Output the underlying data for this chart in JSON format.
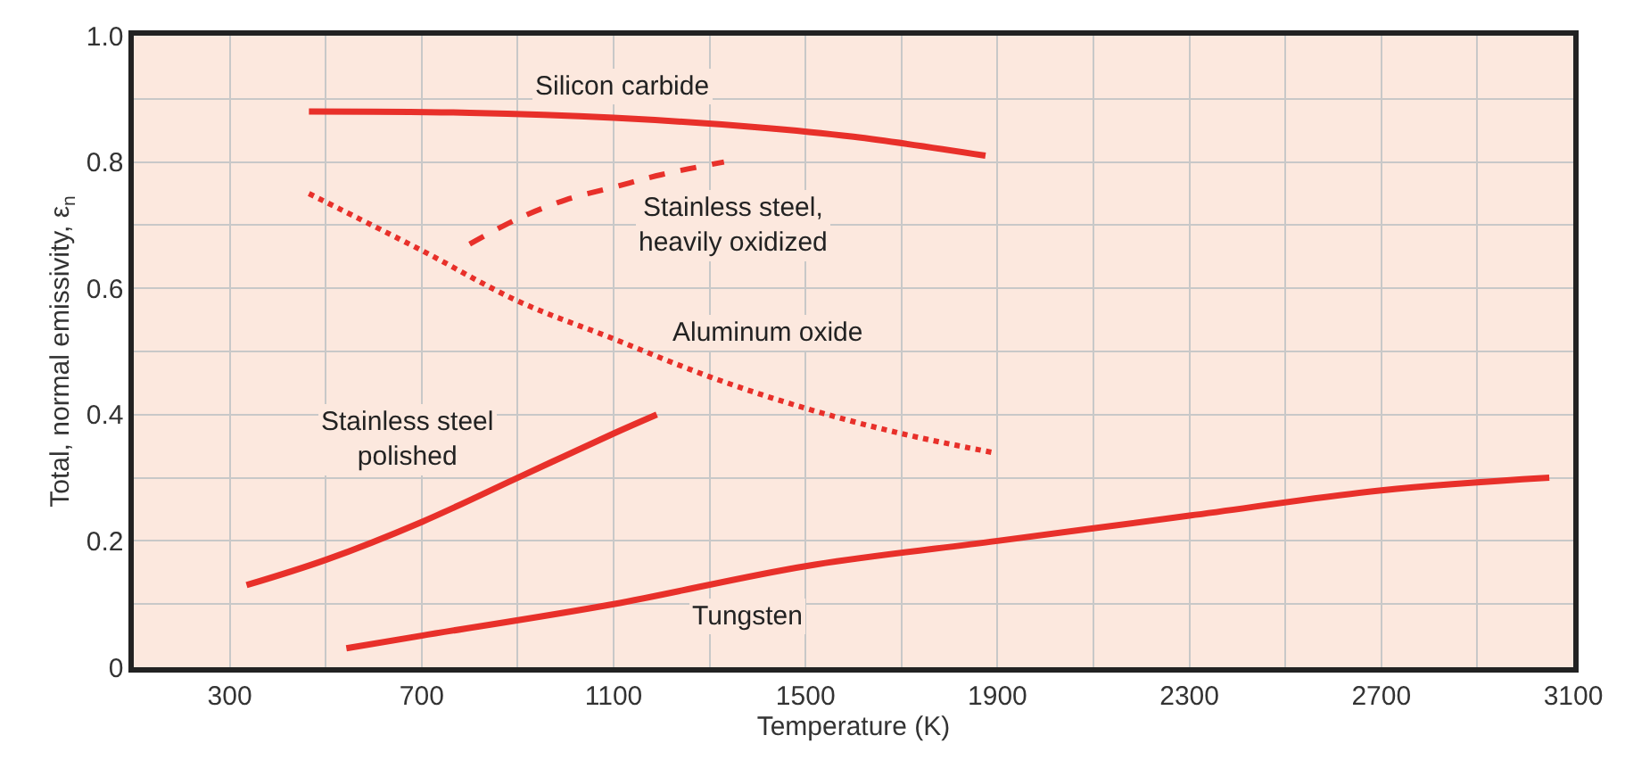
{
  "chart_data": {
    "type": "line",
    "xlabel": "Temperature (K)",
    "ylabel": "Total, normal emissivity, ε$_{n}$",
    "xlim": [
      100,
      3100
    ],
    "xticks": [
      300,
      700,
      1100,
      1500,
      1900,
      2300,
      2700,
      3100
    ],
    "ylim": [
      0,
      1
    ],
    "yticks": [
      0,
      {
        "value": 0.2,
        "label": "0.2"
      },
      {
        "value": 0.4,
        "label": "0.4"
      },
      {
        "value": 0.6,
        "label": "0.6"
      },
      {
        "value": 0.8,
        "label": "0.8"
      },
      {
        "value": 1,
        "label": "1.0"
      }
    ],
    "grid": true,
    "legend": false,
    "marker": "none",
    "series": [
      {
        "name": "Silicon carbide",
        "color": "#e8302a",
        "line_style": "solid",
        "x": [
          465,
          800,
          1100,
          1400,
          1600,
          1875
        ],
        "values": [
          0.88,
          0.878,
          0.87,
          0.855,
          0.84,
          0.81
        ]
      },
      {
        "name": "Stainless steel,\nheavily oxidized",
        "color": "#e8302a",
        "line_style": "dashed",
        "x": [
          800,
          900,
          1000,
          1100,
          1200,
          1330
        ],
        "values": [
          0.67,
          0.71,
          0.74,
          0.76,
          0.78,
          0.8
        ]
      },
      {
        "name": "Aluminum oxide",
        "color": "#e8302a",
        "line_style": "dotted",
        "x": [
          465,
          700,
          900,
          1100,
          1300,
          1500,
          1700,
          1890
        ],
        "values": [
          0.75,
          0.66,
          0.58,
          0.52,
          0.46,
          0.41,
          0.37,
          0.34
        ]
      },
      {
        "name": "Stainless steel\npolished",
        "color": "#e8302a",
        "line_style": "solid",
        "x": [
          335,
          500,
          700,
          900,
          1100,
          1190
        ],
        "values": [
          0.13,
          0.17,
          0.23,
          0.3,
          0.37,
          0.4
        ]
      },
      {
        "name": "Tungsten",
        "color": "#e8302a",
        "line_style": "solid",
        "x": [
          543,
          700,
          1100,
          1500,
          1900,
          2300,
          2700,
          3050
        ],
        "values": [
          0.03,
          0.05,
          0.1,
          0.16,
          0.2,
          0.24,
          0.28,
          0.3
        ]
      }
    ]
  }
}
